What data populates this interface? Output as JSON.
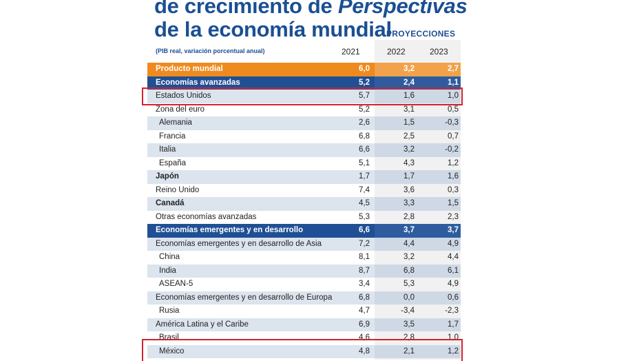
{
  "title": {
    "line1_prefix": "de crecimiento de ",
    "line1_italic": "Perspectivas",
    "line2": "de la economía mundial",
    "badge": "PROYECCIONES"
  },
  "note": "(PIB real, variación porcentual anual)",
  "years": [
    "2021",
    "2022",
    "2023"
  ],
  "rows": [
    {
      "label": "Producto mundial",
      "v": [
        "6,0",
        "3,2",
        "2,7"
      ],
      "style": "world"
    },
    {
      "label": "Economías avanzadas",
      "v": [
        "5,2",
        "2,4",
        "1,1"
      ],
      "style": "blue"
    },
    {
      "label": "Estados Unidos",
      "v": [
        "5,7",
        "1,6",
        "1,0"
      ],
      "style": "alt"
    },
    {
      "label": "Zona del euro",
      "v": [
        "5,2",
        "3,1",
        "0,5"
      ],
      "style": "plain"
    },
    {
      "label": "Alemania",
      "v": [
        "2,6",
        "1,5",
        "-0,3"
      ],
      "style": "alt",
      "indent": true
    },
    {
      "label": "Francia",
      "v": [
        "6,8",
        "2,5",
        "0,7"
      ],
      "style": "plain",
      "indent": true
    },
    {
      "label": "Italia",
      "v": [
        "6,6",
        "3,2",
        "-0,2"
      ],
      "style": "alt",
      "indent": true
    },
    {
      "label": "España",
      "v": [
        "5,1",
        "4,3",
        "1,2"
      ],
      "style": "plain",
      "indent": true
    },
    {
      "label": "Japón",
      "v": [
        "1,7",
        "1,7",
        "1,6"
      ],
      "style": "alt",
      "bold": true
    },
    {
      "label": "Reino Unido",
      "v": [
        "7,4",
        "3,6",
        "0,3"
      ],
      "style": "plain"
    },
    {
      "label": "Canadá",
      "v": [
        "4,5",
        "3,3",
        "1,5"
      ],
      "style": "alt",
      "bold": true
    },
    {
      "label": "Otras economías avanzadas",
      "v": [
        "5,3",
        "2,8",
        "2,3"
      ],
      "style": "plain"
    },
    {
      "label": "Economías emergentes y en desarrollo",
      "v": [
        "6,6",
        "3,7",
        "3,7"
      ],
      "style": "blue"
    },
    {
      "label": "Economías emergentes y en desarrollo de Asia",
      "v": [
        "7,2",
        "4,4",
        "4,9"
      ],
      "style": "alt"
    },
    {
      "label": "China",
      "v": [
        "8,1",
        "3,2",
        "4,4"
      ],
      "style": "plain",
      "indent": true
    },
    {
      "label": "India",
      "v": [
        "8,7",
        "6,8",
        "6,1"
      ],
      "style": "alt",
      "indent": true
    },
    {
      "label": "ASEAN-5",
      "v": [
        "3,4",
        "5,3",
        "4,9"
      ],
      "style": "plain",
      "indent": true
    },
    {
      "label": "Economías emergentes y en desarrollo de Europa",
      "v": [
        "6,8",
        "0,0",
        "0,6"
      ],
      "style": "alt"
    },
    {
      "label": "Rusia",
      "v": [
        "4,7",
        "-3,4",
        "-2,3"
      ],
      "style": "plain",
      "indent": true
    },
    {
      "label": "América Latina y el Caribe",
      "v": [
        "6,9",
        "3,5",
        "1,7"
      ],
      "style": "alt"
    },
    {
      "label": "Brasil",
      "v": [
        "4,6",
        "2,8",
        "1,0"
      ],
      "style": "plain",
      "indent": true
    },
    {
      "label": "México",
      "v": [
        "4,8",
        "2,1",
        "1,2"
      ],
      "style": "alt",
      "indent": true
    }
  ],
  "colors": {
    "accent_blue": "#1f4f94",
    "orange": "#ef8a1f",
    "highlight_red": "#d4202f"
  }
}
